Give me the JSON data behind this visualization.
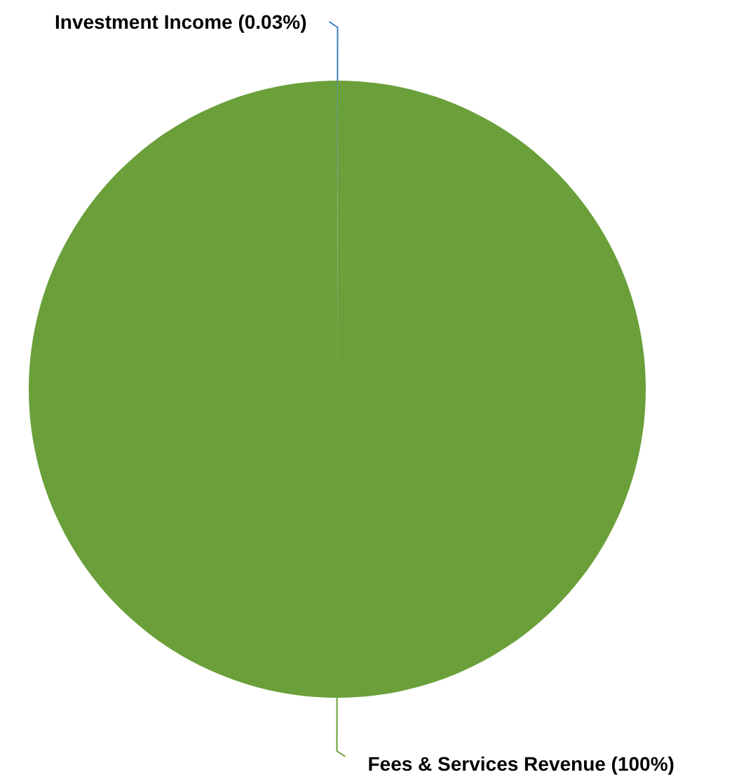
{
  "chart_data": {
    "type": "pie",
    "categories": [
      "Investment Income",
      "Fees & Services Revenue"
    ],
    "values": [
      0.03,
      99.97
    ],
    "value_labels": [
      "(0.03%)",
      "(100%)"
    ],
    "colors": [
      "#3a7bbf",
      "#6a9f3a"
    ]
  }
}
